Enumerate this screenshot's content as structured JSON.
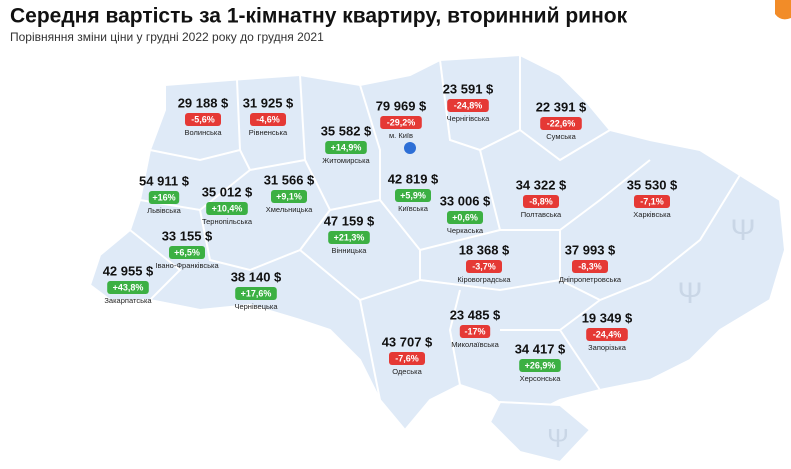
{
  "header": {
    "title": "Середня вартість за 1-кімнатну квартиру, вторинний ринок",
    "subtitle": "Порівняння зміни ціни у грудні 2022 року до грудня 2021"
  },
  "regions": [
    {
      "name": "Волинська",
      "price": "29 188 $",
      "change": "-5,6%"
    },
    {
      "name": "Рівненська",
      "price": "31 925 $",
      "change": "-4,6%"
    },
    {
      "name": "Житомирська",
      "price": "35 582 $",
      "change": "+14,9%"
    },
    {
      "name": "м. Київ",
      "price": "79 969 $",
      "change": "-29,2%"
    },
    {
      "name": "Чернігівська",
      "price": "23 591 $",
      "change": "-24,8%"
    },
    {
      "name": "Сумська",
      "price": "22 391 $",
      "change": "-22,6%"
    },
    {
      "name": "Львівська",
      "price": "54 911 $",
      "change": "+16%"
    },
    {
      "name": "Тернопільська",
      "price": "35 012 $",
      "change": "+10,4%"
    },
    {
      "name": "Хмельницька",
      "price": "31 566 $",
      "change": "+9,1%"
    },
    {
      "name": "Київська",
      "price": "42 819 $",
      "change": "+5,9%"
    },
    {
      "name": "Черкаська",
      "price": "33 006 $",
      "change": "+0,6%"
    },
    {
      "name": "Полтавська",
      "price": "34 322 $",
      "change": "-8,8%"
    },
    {
      "name": "Харківська",
      "price": "35 530 $",
      "change": "-7,1%"
    },
    {
      "name": "Вінницька",
      "price": "47 159 $",
      "change": "+21,3%"
    },
    {
      "name": "Івано-Франківська",
      "price": "33 155 $",
      "change": "+6,5%"
    },
    {
      "name": "Кіровоградська",
      "price": "18 368 $",
      "change": "-3,7%"
    },
    {
      "name": "Дніпропетровська",
      "price": "37 993 $",
      "change": "-8,3%"
    },
    {
      "name": "Закарпатська",
      "price": "42 955 $",
      "change": "+43,8%"
    },
    {
      "name": "Чернівецька",
      "price": "38 140 $",
      "change": "+17,6%"
    },
    {
      "name": "Миколаївська",
      "price": "23 485 $",
      "change": "-17%"
    },
    {
      "name": "Запорізька",
      "price": "19 349 $",
      "change": "-24,4%"
    },
    {
      "name": "Одеська",
      "price": "43 707 $",
      "change": "-7,6%"
    },
    {
      "name": "Херсонська",
      "price": "34 417 $",
      "change": "+26,9%"
    }
  ]
}
